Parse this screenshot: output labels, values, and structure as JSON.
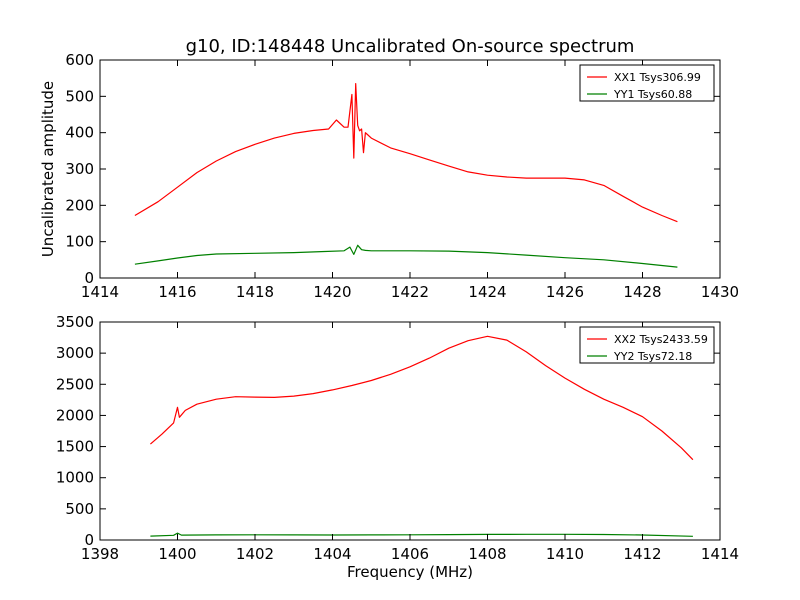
{
  "chart_data": [
    {
      "type": "line",
      "title": "g10, ID:148448 Uncalibrated On-source spectrum",
      "xlabel": "",
      "ylabel": "Uncalibrated amplitude",
      "xlim": [
        1414,
        1430
      ],
      "ylim": [
        0,
        600
      ],
      "xticks": [
        1414,
        1416,
        1418,
        1420,
        1422,
        1424,
        1426,
        1428,
        1430
      ],
      "yticks": [
        0,
        100,
        200,
        300,
        400,
        500,
        600
      ],
      "legend_position": "top-right",
      "series": [
        {
          "name": "XX1 Tsys306.99",
          "color": "#ff0000",
          "x": [
            1414.9,
            1415.5,
            1416.0,
            1416.5,
            1417.0,
            1417.5,
            1418.0,
            1418.5,
            1419.0,
            1419.5,
            1419.9,
            1420.1,
            1420.3,
            1420.4,
            1420.5,
            1420.55,
            1420.6,
            1420.65,
            1420.7,
            1420.75,
            1420.8,
            1420.85,
            1420.9,
            1421.0,
            1421.5,
            1422.0,
            1422.5,
            1423.0,
            1423.5,
            1424.0,
            1424.5,
            1425.0,
            1425.5,
            1426.0,
            1426.5,
            1427.0,
            1427.5,
            1428.0,
            1428.5,
            1428.9
          ],
          "y": [
            172,
            210,
            250,
            290,
            322,
            348,
            368,
            385,
            398,
            406,
            410,
            435,
            415,
            415,
            505,
            330,
            535,
            420,
            405,
            410,
            345,
            400,
            395,
            385,
            358,
            342,
            325,
            308,
            292,
            283,
            278,
            275,
            275,
            275,
            270,
            255,
            225,
            195,
            172,
            155
          ]
        },
        {
          "name": "YY1 Tsys60.88",
          "color": "#008000",
          "x": [
            1414.9,
            1415.5,
            1416.0,
            1416.5,
            1417.0,
            1418.0,
            1419.0,
            1419.8,
            1420.3,
            1420.45,
            1420.55,
            1420.65,
            1420.75,
            1420.85,
            1421.0,
            1422.0,
            1423.0,
            1424.0,
            1425.0,
            1426.0,
            1427.0,
            1428.0,
            1428.9
          ],
          "y": [
            38,
            47,
            55,
            62,
            66,
            68,
            70,
            73,
            75,
            85,
            65,
            90,
            78,
            76,
            75,
            75,
            74,
            70,
            63,
            56,
            50,
            40,
            30
          ]
        }
      ]
    },
    {
      "type": "line",
      "title": "",
      "xlabel": "Frequency (MHz)",
      "ylabel": "",
      "xlim": [
        1398,
        1414
      ],
      "ylim": [
        0,
        3500
      ],
      "xticks": [
        1398,
        1400,
        1402,
        1404,
        1406,
        1408,
        1410,
        1412,
        1414
      ],
      "yticks": [
        0,
        500,
        1000,
        1500,
        2000,
        2500,
        3000,
        3500
      ],
      "legend_position": "top-right",
      "series": [
        {
          "name": "XX2 Tsys2433.59",
          "color": "#ff0000",
          "x": [
            1399.3,
            1399.6,
            1399.9,
            1400.0,
            1400.05,
            1400.2,
            1400.5,
            1401.0,
            1401.5,
            1402.0,
            1402.5,
            1403.0,
            1403.5,
            1404.0,
            1404.5,
            1405.0,
            1405.5,
            1406.0,
            1406.5,
            1407.0,
            1407.5,
            1408.0,
            1408.5,
            1409.0,
            1409.5,
            1410.0,
            1410.5,
            1411.0,
            1411.5,
            1412.0,
            1412.5,
            1413.0,
            1413.3
          ],
          "y": [
            1540,
            1700,
            1880,
            2130,
            1970,
            2080,
            2180,
            2260,
            2300,
            2295,
            2290,
            2310,
            2350,
            2410,
            2480,
            2560,
            2660,
            2780,
            2920,
            3080,
            3200,
            3270,
            3210,
            3020,
            2800,
            2600,
            2420,
            2260,
            2130,
            1980,
            1750,
            1480,
            1290
          ]
        },
        {
          "name": "YY2 Tsys72.18",
          "color": "#008000",
          "x": [
            1399.3,
            1399.9,
            1400.0,
            1400.1,
            1401.0,
            1402.0,
            1403.0,
            1404.0,
            1405.0,
            1406.0,
            1407.0,
            1408.0,
            1409.0,
            1410.0,
            1411.0,
            1412.0,
            1413.3
          ],
          "y": [
            62,
            75,
            110,
            78,
            82,
            84,
            82,
            80,
            82,
            84,
            86,
            90,
            92,
            92,
            88,
            80,
            60
          ]
        }
      ]
    }
  ]
}
